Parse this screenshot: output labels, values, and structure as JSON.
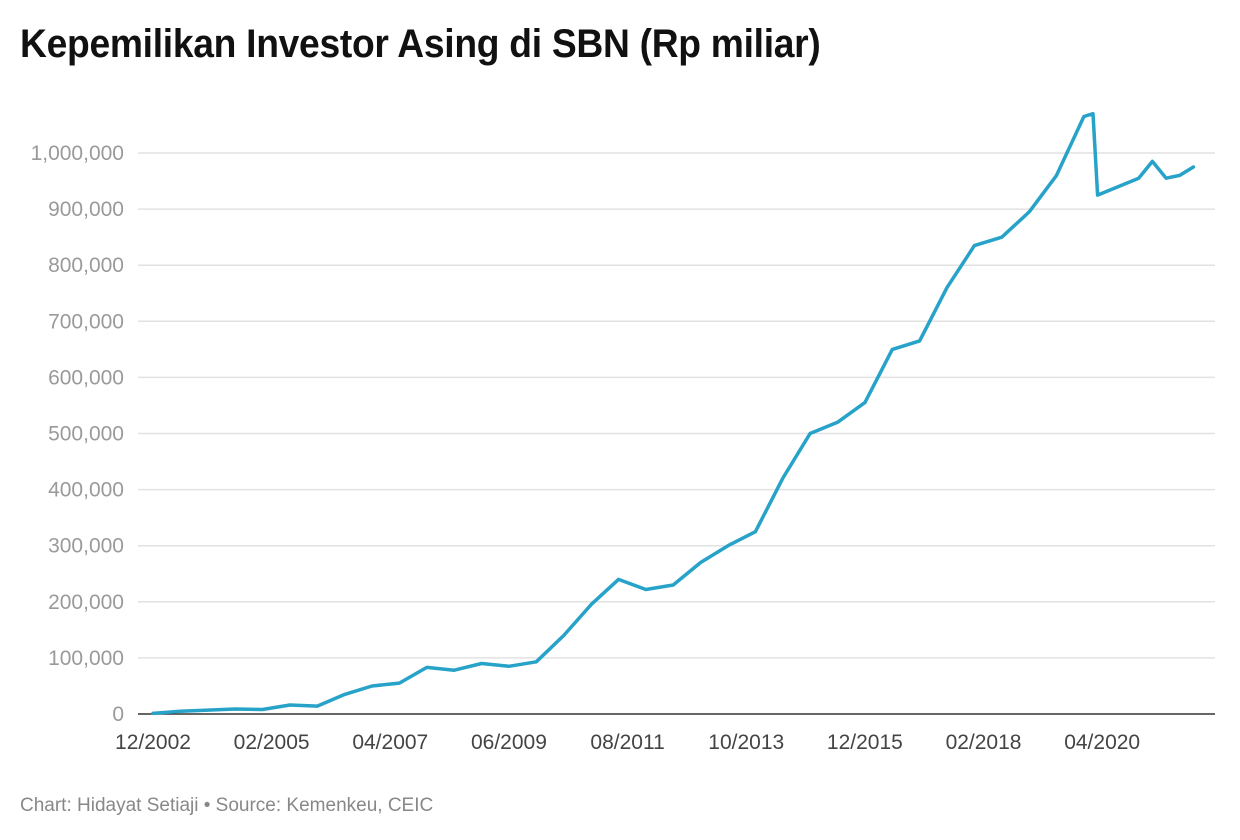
{
  "chart_data": {
    "type": "line",
    "title": "Kepemilikan Investor Asing di SBN (Rp miliar)",
    "source": "Chart: Hidayat Setiaji • Source: Kemenkeu, CEIC",
    "xlabel": "",
    "ylabel": "",
    "x_ticks": [
      "12/2002",
      "02/2005",
      "04/2007",
      "06/2009",
      "08/2011",
      "10/2013",
      "12/2015",
      "02/2018",
      "04/2020"
    ],
    "y_ticks": [
      "0",
      "100,000",
      "200,000",
      "300,000",
      "400,000",
      "500,000",
      "600,000",
      "700,000",
      "800,000",
      "900,000",
      "1,000,000"
    ],
    "ylim": [
      0,
      1080000
    ],
    "x_range": [
      "12/2002",
      "01/2022"
    ],
    "grid": true,
    "legend": "none",
    "colors": {
      "line": "#27a2c8",
      "grid": "#e2e2e2",
      "axis": "#333333"
    },
    "series": [
      {
        "x": [
          "12/2002",
          "06/2003",
          "12/2003",
          "06/2004",
          "12/2004",
          "06/2005",
          "12/2005",
          "06/2006",
          "12/2006",
          "06/2007",
          "12/2007",
          "06/2008",
          "12/2008",
          "06/2009",
          "12/2009",
          "06/2010",
          "12/2010",
          "06/2011",
          "12/2011",
          "06/2012",
          "12/2012",
          "06/2013",
          "12/2013",
          "06/2014",
          "12/2014",
          "06/2015",
          "12/2015",
          "06/2016",
          "12/2016",
          "06/2017",
          "12/2017",
          "06/2018",
          "12/2018",
          "06/2019",
          "12/2019",
          "02/2020",
          "03/2020",
          "06/2020",
          "12/2020",
          "03/2021",
          "06/2021",
          "09/2021",
          "12/2021"
        ],
        "values": [
          1000,
          5000,
          7000,
          9000,
          8000,
          16000,
          14000,
          35000,
          50000,
          55000,
          83000,
          78000,
          90000,
          85000,
          93000,
          140000,
          195000,
          240000,
          222000,
          230000,
          270000,
          300000,
          325000,
          420000,
          500000,
          520000,
          555000,
          650000,
          665000,
          760000,
          835000,
          850000,
          895000,
          960000,
          1065000,
          1070000,
          925000,
          935000,
          955000,
          985000,
          955000,
          960000,
          975000
        ]
      }
    ]
  }
}
